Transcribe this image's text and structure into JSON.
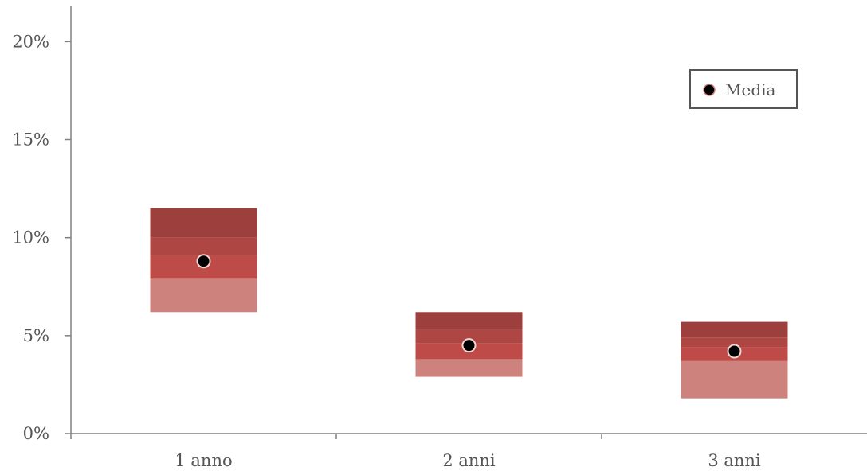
{
  "chart_data": {
    "type": "floating-bar",
    "categories": [
      "1 anno",
      "2 anni",
      "3 anni"
    ],
    "bands": [
      {
        "range": [
          6.2,
          7.9
        ],
        "color": "#cd827d"
      },
      {
        "range": [
          7.9,
          9.1
        ],
        "color": "#bf4b48"
      },
      {
        "range": [
          9.1,
          10.0
        ],
        "color": "#ae4744"
      },
      {
        "range": [
          10.0,
          11.5
        ],
        "color": "#9d3f3d"
      }
    ],
    "bands_by_category": [
      [
        [
          6.2,
          7.9
        ],
        [
          7.9,
          9.1
        ],
        [
          9.1,
          10.0
        ],
        [
          10.0,
          11.5
        ]
      ],
      [
        [
          2.9,
          3.8
        ],
        [
          3.8,
          4.6
        ],
        [
          4.6,
          5.3
        ],
        [
          5.3,
          6.2
        ]
      ],
      [
        [
          1.8,
          3.7
        ],
        [
          3.7,
          4.4
        ],
        [
          4.4,
          4.9
        ],
        [
          4.9,
          5.7
        ]
      ]
    ],
    "band_colors": [
      "#cd827d",
      "#bf4b48",
      "#ae4744",
      "#9d3f3d"
    ],
    "mean": {
      "name": "Media",
      "values": [
        8.8,
        4.5,
        4.2
      ],
      "color": "#000000"
    },
    "y_ticks": [
      "0%",
      "5%",
      "10%",
      "15%",
      "20%"
    ],
    "y_tick_values": [
      0,
      5,
      10,
      15,
      20
    ],
    "ylim": [
      0,
      21.8
    ],
    "legend_position": "top-right",
    "title": "",
    "xlabel": "",
    "ylabel": ""
  },
  "legend": {
    "label": "Media"
  }
}
